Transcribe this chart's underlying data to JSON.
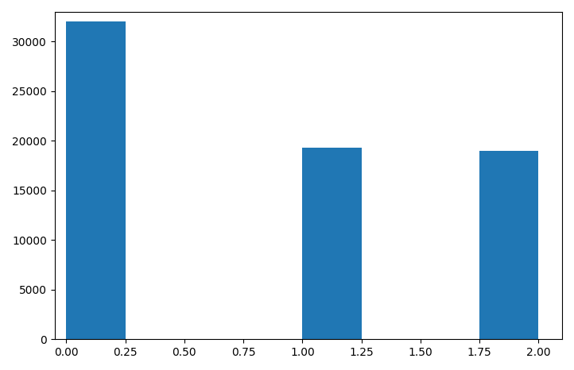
{
  "bin_edges": [
    0.0,
    0.25,
    0.5,
    0.75,
    1.0,
    1.25,
    1.5,
    1.75,
    2.0
  ],
  "counts": [
    32000,
    0,
    0,
    0,
    19300,
    0,
    0,
    19000
  ],
  "bar_color": "#2077b4",
  "xlim": [
    -0.05,
    2.1
  ],
  "ylim": [
    0,
    33000
  ],
  "xticks": [
    0.0,
    0.25,
    0.5,
    0.75,
    1.0,
    1.25,
    1.5,
    1.75,
    2.0
  ],
  "yticks": [
    0,
    5000,
    10000,
    15000,
    20000,
    25000,
    30000
  ],
  "figsize": [
    7.22,
    4.66
  ],
  "dpi": 100
}
